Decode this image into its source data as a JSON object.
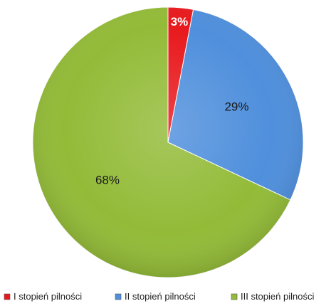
{
  "chart_data": {
    "type": "pie",
    "categories": [
      "I stopień pilności",
      "II stopień pilności",
      "III stopień pilności"
    ],
    "values": [
      3,
      29,
      68
    ],
    "labels": [
      "3%",
      "29%",
      "68%"
    ],
    "colors": [
      "#e8191c",
      "#4f8fdc",
      "#93bb38"
    ],
    "label_colors": [
      "#ffffff",
      "#1a1a1a",
      "#1a1a1a"
    ],
    "legend_position": "bottom",
    "title": "",
    "start_angle_deg": 0,
    "direction": "clockwise"
  }
}
